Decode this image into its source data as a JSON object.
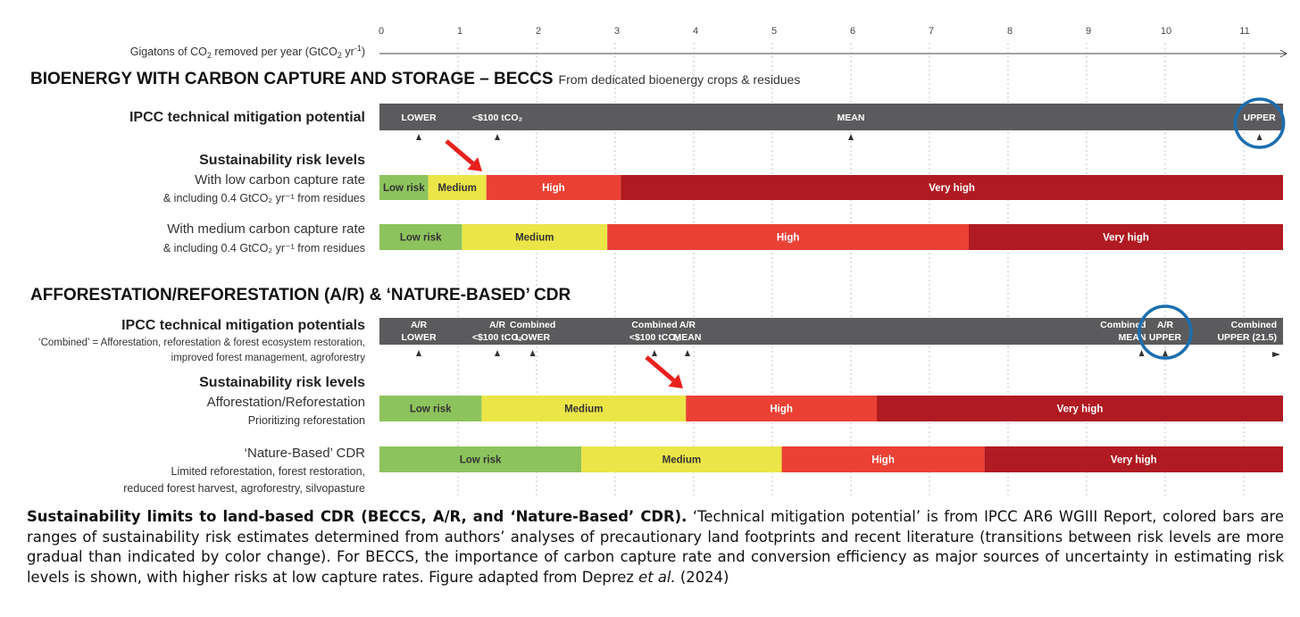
{
  "chart_data": {
    "type": "range-bars",
    "xaxis": {
      "label_prefix": "Gigatons of CO",
      "label_sub": "2",
      "label_mid": " removed per year (GtCO",
      "label_sub2": "2",
      "label_mid2": " yr",
      "label_sup": "-1",
      "label_end": ")",
      "ticks": [
        "0",
        "1",
        "2",
        "3",
        "4",
        "5",
        "6",
        "7",
        "8",
        "9",
        "10",
        "11"
      ],
      "xlim": [
        0,
        11.5
      ]
    },
    "beccs": {
      "title": "BIOENERGY WITH CARBON CAPTURE AND STORAGE – BECCS",
      "subtitle": "From dedicated bioenergy crops & residues",
      "ipcc": {
        "label": "IPCC technical mitigation potential",
        "markers": [
          {
            "text": "LOWER",
            "value": 0.5
          },
          {
            "text": "<$100 tCO₂",
            "value": 1.5
          },
          {
            "text": "MEAN",
            "value": 6.0
          },
          {
            "text": "UPPER",
            "value": 11.2,
            "circled": true
          }
        ]
      },
      "risk_heading": "Sustainability  risk levels",
      "rows": [
        {
          "line1": "With low carbon capture rate",
          "line2": "& including 0.4 GtCO₂ yr⁻¹ from residues",
          "segments": [
            {
              "label": "Low risk",
              "from": 0,
              "to": 0.62,
              "level": "low"
            },
            {
              "label": "Medium",
              "from": 0.62,
              "to": 1.36,
              "level": "medium"
            },
            {
              "label": "High",
              "from": 1.36,
              "to": 3.07,
              "level": "high"
            },
            {
              "label": "Very high",
              "from": 3.07,
              "to": 11.5,
              "level": "veryhigh"
            }
          ]
        },
        {
          "line1": "With medium carbon capture rate",
          "line2": "& including 0.4 GtCO₂ yr⁻¹ from residues",
          "segments": [
            {
              "label": "Low risk",
              "from": 0,
              "to": 1.05,
              "level": "low"
            },
            {
              "label": "Medium",
              "from": 1.05,
              "to": 2.9,
              "level": "medium"
            },
            {
              "label": "High",
              "from": 2.9,
              "to": 7.5,
              "level": "high"
            },
            {
              "label": "Very high",
              "from": 7.5,
              "to": 11.5,
              "level": "veryhigh"
            }
          ]
        }
      ]
    },
    "ar": {
      "title": "AFFORESTATION/REFORESTATION (A/R) & ‘NATURE-BASED’ CDR",
      "ipcc": {
        "label": "IPCC technical mitigation potentials",
        "note1": "‘Combined’ = Afforestation, reforestation & forest ecosystem restoration,",
        "note2": "improved forest management, agroforestry",
        "markers": [
          {
            "l1": "A/R",
            "l2": "LOWER",
            "value": 0.5
          },
          {
            "l1": "A/R",
            "l2": "<$100 tCO₂",
            "value": 1.5
          },
          {
            "l1": "Combined",
            "l2": "LOWER",
            "value": 1.95
          },
          {
            "l1": "Combined",
            "l2": "<$100 tCO₂",
            "value": 3.5
          },
          {
            "l1": "A/R",
            "l2": "MEAN",
            "value": 3.92
          },
          {
            "l1": "Combined",
            "l2": "MEAN",
            "value": 9.7
          },
          {
            "l1": "A/R",
            "l2": "UPPER",
            "value": 10.0,
            "circled": true
          },
          {
            "l1": "Combined",
            "l2": "UPPER (21.5)",
            "value": 11.5,
            "arrow": true
          }
        ]
      },
      "risk_heading": "Sustainability risk levels",
      "rows": [
        {
          "line1": "Afforestation/Reforestation",
          "line2": "Prioritizing reforestation",
          "segments": [
            {
              "label": "Low risk",
              "from": 0,
              "to": 1.3,
              "level": "low"
            },
            {
              "label": "Medium",
              "from": 1.3,
              "to": 3.9,
              "level": "medium"
            },
            {
              "label": "High",
              "from": 3.9,
              "to": 6.33,
              "level": "high"
            },
            {
              "label": "Very high",
              "from": 6.33,
              "to": 11.5,
              "level": "veryhigh"
            }
          ]
        },
        {
          "line1": "‘Nature-Based’ CDR",
          "line2": "Limited reforestation, forest restoration,",
          "line3": "reduced forest harvest, agroforestry, silvopasture",
          "segments": [
            {
              "label": "Low risk",
              "from": 0,
              "to": 2.57,
              "level": "low"
            },
            {
              "label": "Medium",
              "from": 2.57,
              "to": 5.12,
              "level": "medium"
            },
            {
              "label": "High",
              "from": 5.12,
              "to": 7.7,
              "level": "high"
            },
            {
              "label": "Very high",
              "from": 7.7,
              "to": 11.5,
              "level": "veryhigh"
            }
          ]
        }
      ]
    },
    "colors": {
      "low": "#8dc35d",
      "medium": "#ebe548",
      "high": "#ea4134",
      "veryhigh": "#b01a22",
      "ipcc_bar": "#5b5b5d",
      "circle": "#1b6eaf",
      "arrow": "#e8201d"
    }
  },
  "caption": {
    "bold": "Sustainability limits to land-based CDR (BECCS, A/R, and ‘Nature-Based’ CDR).",
    "text1": " ‘Technical mitigation potential’ is from IPCC AR6 WGIII Report, colored bars are ranges of sustainability risk estimates determined from authors’ analyses of precautionary land footprints and recent literature (transitions between risk levels are more gradual than indicated by color change). For BECCS, the importance of carbon capture rate and conversion efficiency as major sources of uncertainty in estimating risk levels is shown, with higher risks at low capture rates. Figure adapted from Deprez ",
    "italic": "et al.",
    "text2": " (2024)"
  }
}
